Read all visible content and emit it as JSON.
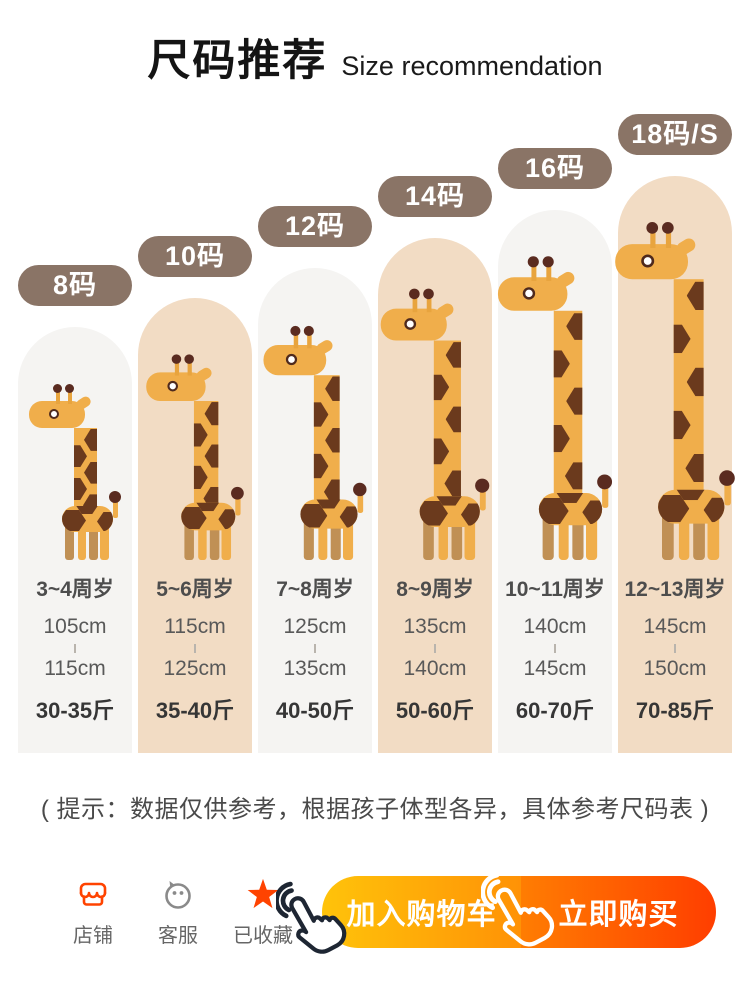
{
  "header": {
    "title": "尺码推荐",
    "subtitle": "Size recommendation"
  },
  "size_chart": {
    "columns": [
      {
        "badge": "8码",
        "age": "3~4周岁",
        "height_min": "105cm",
        "height_max": "115cm",
        "weight": "30-35斤"
      },
      {
        "badge": "10码",
        "age": "5~6周岁",
        "height_min": "115cm",
        "height_max": "125cm",
        "weight": "35-40斤"
      },
      {
        "badge": "12码",
        "age": "7~8周岁",
        "height_min": "125cm",
        "height_max": "135cm",
        "weight": "40-50斤"
      },
      {
        "badge": "14码",
        "age": "8~9周岁",
        "height_min": "135cm",
        "height_max": "140cm",
        "weight": "50-60斤"
      },
      {
        "badge": "16码",
        "age": "10~11周岁",
        "height_min": "140cm",
        "height_max": "145cm",
        "weight": "60-70斤"
      },
      {
        "badge": "18码/S",
        "age": "12~13周岁",
        "height_min": "145cm",
        "height_max": "150cm",
        "weight": "70-85斤"
      }
    ]
  },
  "note": "( 提示：数据仅供参考，根据孩子体型各异，具体参考尺码表 )",
  "action_bar": {
    "store": {
      "label": "店铺",
      "icon": "storefront-icon"
    },
    "service": {
      "label": "客服",
      "icon": "chat-bubble-icon"
    },
    "favorite": {
      "label": "已收藏",
      "icon": "star-icon"
    },
    "add_to_cart": {
      "label": "加入购物车",
      "icon": "tap-hand-icon"
    },
    "buy_now": {
      "label": "立即购买",
      "icon": "tap-hand-icon"
    }
  },
  "colors": {
    "badge_bg": "#8a7466",
    "column_warm": "#f2dcc4",
    "column_gray": "#f5f4f2",
    "giraffe_orange": "#f0ae4b",
    "giraffe_patch": "#6b3a1d",
    "store_icon": "#ff4300",
    "favorite_star": "#ff4300",
    "cart_gradient_start": "#ffc30a",
    "cart_gradient_end": "#ff9206",
    "buy_gradient_start": "#ff7d02",
    "buy_gradient_end": "#ff3e00"
  }
}
